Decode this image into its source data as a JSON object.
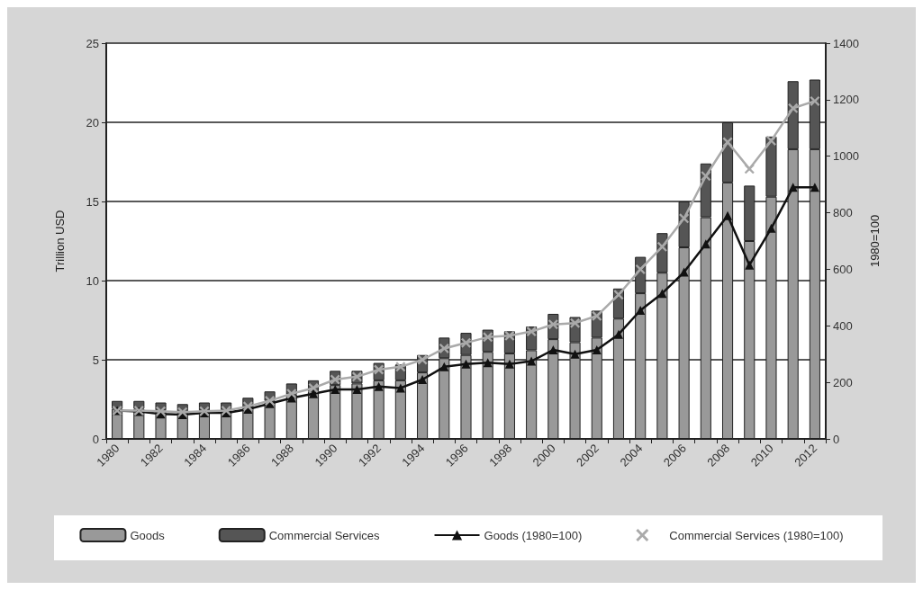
{
  "chart_data": {
    "type": "bar",
    "stacked": true,
    "ylabel": "Trillion USD",
    "y2label": "1980=100",
    "categories": [
      "1980",
      null,
      "1982",
      null,
      "1984",
      null,
      "1986",
      null,
      "1988",
      null,
      "1990",
      null,
      "1992",
      null,
      "1994",
      null,
      "1996",
      null,
      "1998",
      null,
      "2000",
      null,
      "2002",
      null,
      "2004",
      null,
      "2006",
      null,
      "2008",
      null,
      "2010",
      null,
      "2012"
    ],
    "series": [
      {
        "name": "Goods",
        "color": "#999999",
        "values": [
          1.9,
          1.9,
          1.8,
          1.7,
          1.8,
          1.8,
          2.0,
          2.4,
          2.8,
          3.0,
          3.4,
          3.5,
          3.7,
          3.7,
          4.2,
          5.1,
          5.3,
          5.5,
          5.4,
          5.6,
          6.3,
          6.1,
          6.4,
          7.6,
          9.2,
          10.5,
          12.1,
          14.0,
          16.2,
          12.5,
          15.3,
          18.3,
          18.3
        ]
      },
      {
        "name": "Commercial Services",
        "color": "#555555",
        "values": [
          0.5,
          0.5,
          0.5,
          0.5,
          0.5,
          0.5,
          0.6,
          0.6,
          0.7,
          0.7,
          0.9,
          0.8,
          1.1,
          1.0,
          1.1,
          1.3,
          1.4,
          1.4,
          1.4,
          1.5,
          1.6,
          1.6,
          1.7,
          1.9,
          2.3,
          2.5,
          2.9,
          3.4,
          3.8,
          3.5,
          3.8,
          4.3,
          4.4
        ]
      },
      {
        "name": "Goods (1980=100)",
        "type": "line",
        "axis": "y2",
        "marker": "triangle",
        "color": "#111111",
        "values": [
          100,
          97,
          88,
          86,
          92,
          92,
          105,
          125,
          145,
          160,
          175,
          175,
          185,
          180,
          210,
          255,
          265,
          270,
          265,
          275,
          315,
          300,
          315,
          370,
          455,
          515,
          590,
          690,
          790,
          615,
          745,
          890,
          890
        ]
      },
      {
        "name": "Commercial Services (1980=100)",
        "type": "line",
        "axis": "y2",
        "marker": "cross",
        "color": "#aaaaaa",
        "values": [
          100,
          100,
          98,
          95,
          98,
          100,
          115,
          135,
          160,
          180,
          210,
          220,
          245,
          255,
          280,
          320,
          340,
          360,
          365,
          380,
          405,
          410,
          435,
          510,
          600,
          680,
          780,
          930,
          1050,
          955,
          1055,
          1170,
          1195
        ]
      }
    ],
    "ylim": [
      0,
      25
    ],
    "yticks": [
      0,
      5,
      10,
      15,
      20,
      25
    ],
    "y2lim": [
      0,
      1400
    ],
    "y2ticks": [
      0,
      200,
      400,
      600,
      800,
      1000,
      1200,
      1400
    ],
    "grid": "y",
    "legend": "bottom"
  }
}
